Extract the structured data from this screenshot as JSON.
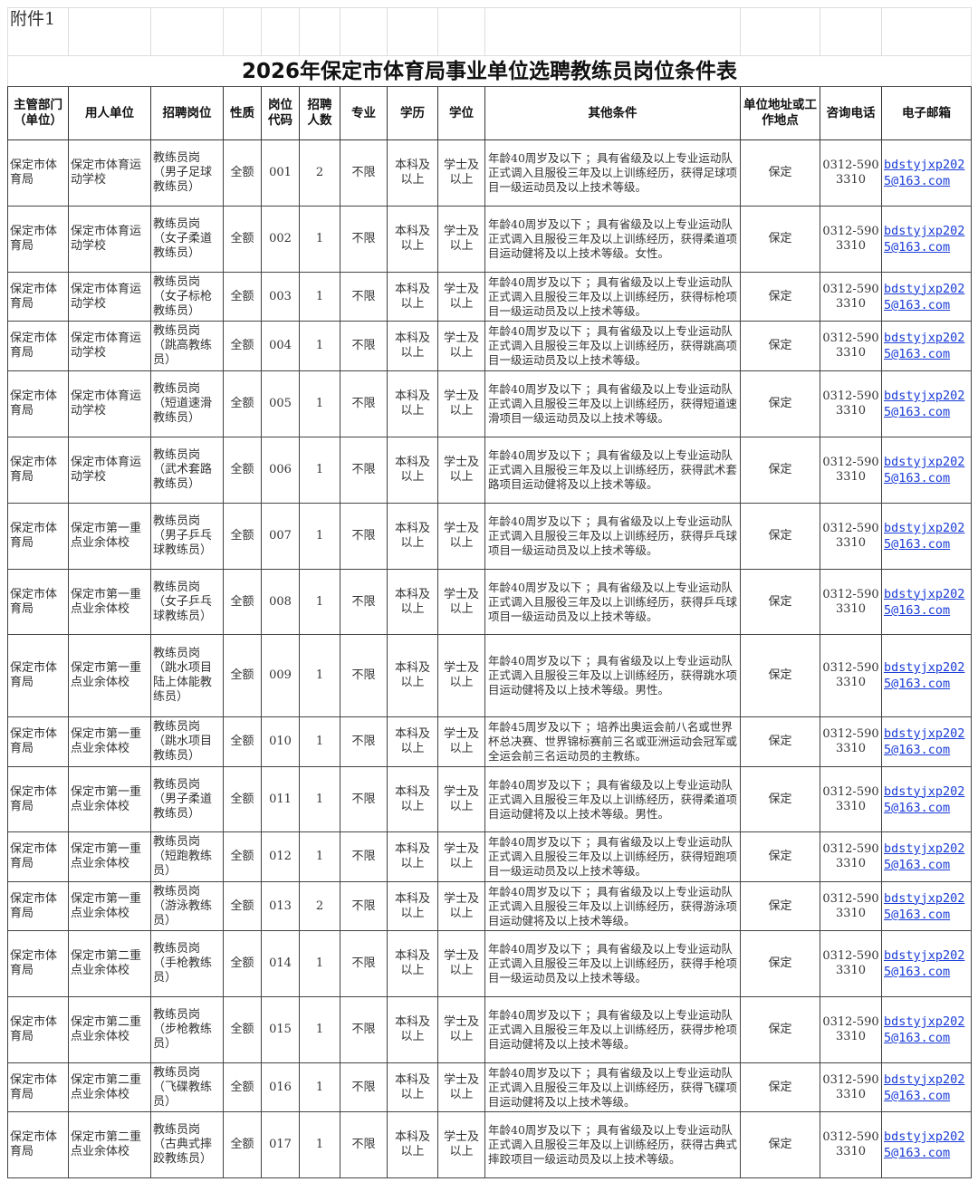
{
  "annex_label": "附件1",
  "title": "2026年保定市体育局事业单位选聘教练员岗位条件表",
  "headers": [
    "主管部门（单位）",
    "用人单位",
    "招聘岗位",
    "性质",
    "岗位代码",
    "招聘人数",
    "专业",
    "学历",
    "学位",
    "其他条件",
    "单位地址或工作地点",
    "咨询电话",
    "电子邮箱"
  ],
  "rows": [
    {
      "dept": "保定市体育局",
      "unit": "保定市体育运动学校",
      "post": "教练员岗（男子足球教练员）",
      "type": "全额",
      "code": "001",
      "count": "2",
      "major": "不限",
      "edu": "本科及以上",
      "degree": "学士及以上",
      "cond": "年龄40周岁及以下 ；具有省级及以上专业运动队正式调入且服役三年及以上训练经历，获得足球项目一级运动员及以上技术等级。",
      "place": "保定",
      "phone": "0312-5903310",
      "email": "bdstyjxp2025@163.com"
    },
    {
      "dept": "保定市体育局",
      "unit": "保定市体育运动学校",
      "post": "教练员岗（女子柔道教练员）",
      "type": "全额",
      "code": "002",
      "count": "1",
      "major": "不限",
      "edu": "本科及以上",
      "degree": "学士及以上",
      "cond": "年龄40周岁及以下 ；具有省级及以上专业运动队正式调入且服役三年及以上训练经历，获得柔道项目运动健将及以上技术等级。女性。",
      "place": "保定",
      "phone": "0312-5903310",
      "email": "bdstyjxp2025@163.com"
    },
    {
      "dept": "保定市体育局",
      "unit": "保定市体育运动学校",
      "post": "教练员岗（女子标枪教练员）",
      "type": "全额",
      "code": "003",
      "count": "1",
      "major": "不限",
      "edu": "本科及以上",
      "degree": "学士及以上",
      "cond": "年龄40周岁及以下 ；具有省级及以上专业运动队正式调入且服役三年及以上训练经历，获得标枪项目一级运动员及以上技术等级。",
      "place": "保定",
      "phone": "0312-5903310",
      "email": "bdstyjxp2025@163.com"
    },
    {
      "dept": "保定市体育局",
      "unit": "保定市体育运动学校",
      "post": "教练员岗（跳高教练员）",
      "type": "全额",
      "code": "004",
      "count": "1",
      "major": "不限",
      "edu": "本科及以上",
      "degree": "学士及以上",
      "cond": "年龄40周岁及以下 ；具有省级及以上专业运动队正式调入且服役三年及以上训练经历，获得跳高项目一级运动员及以上技术等级。",
      "place": "保定",
      "phone": "0312-5903310",
      "email": "bdstyjxp2025@163.com"
    },
    {
      "dept": "保定市体育局",
      "unit": "保定市体育运动学校",
      "post": "教练员岗（短道速滑教练员）",
      "type": "全额",
      "code": "005",
      "count": "1",
      "major": "不限",
      "edu": "本科及以上",
      "degree": "学士及以上",
      "cond": "年龄40周岁及以下 ；具有省级及以上专业运动队正式调入且服役三年及以上训练经历，获得短道速滑项目一级运动员及以上技术等级。",
      "place": "保定",
      "phone": "0312-5903310",
      "email": "bdstyjxp2025@163.com"
    },
    {
      "dept": "保定市体育局",
      "unit": "保定市体育运动学校",
      "post": "教练员岗（武术套路教练员）",
      "type": "全额",
      "code": "006",
      "count": "1",
      "major": "不限",
      "edu": "本科及以上",
      "degree": "学士及以上",
      "cond": "年龄40周岁及以下 ；具有省级及以上专业运动队正式调入且服役三年及以上训练经历，获得武术套路项目运动健将及以上技术等级。",
      "place": "保定",
      "phone": "0312-5903310",
      "email": "bdstyjxp2025@163.com"
    },
    {
      "dept": "保定市体育局",
      "unit": "保定市第一重点业余体校",
      "post": "教练员岗（男子乒乓球教练员）",
      "type": "全额",
      "code": "007",
      "count": "1",
      "major": "不限",
      "edu": "本科及以上",
      "degree": "学士及以上",
      "cond": "年龄40周岁及以下 ；具有省级及以上专业运动队正式调入且服役三年及以上训练经历，获得乒乓球项目一级运动员及以上技术等级。",
      "place": "保定",
      "phone": "0312-5903310",
      "email": "bdstyjxp2025@163.com"
    },
    {
      "dept": "保定市体育局",
      "unit": "保定市第一重点业余体校",
      "post": "教练员岗（女子乒乓球教练员）",
      "type": "全额",
      "code": "008",
      "count": "1",
      "major": "不限",
      "edu": "本科及以上",
      "degree": "学士及以上",
      "cond": "年龄40周岁及以下 ；具有省级及以上专业运动队正式调入且服役三年及以上训练经历，获得乒乓球项目一级运动员及以上技术等级。",
      "place": "保定",
      "phone": "0312-5903310",
      "email": "bdstyjxp2025@163.com"
    },
    {
      "dept": "保定市体育局",
      "unit": "保定市第一重点业余体校",
      "post": "教练员岗（跳水项目陆上体能教练员）",
      "type": "全额",
      "code": "009",
      "count": "1",
      "major": "不限",
      "edu": "本科及以上",
      "degree": "学士及以上",
      "cond": "年龄40周岁及以下 ；具有省级及以上专业运动队正式调入且服役三年及以上训练经历，获得跳水项目运动健将及以上技术等级。男性。",
      "place": "保定",
      "phone": "0312-5903310",
      "email": "bdstyjxp2025@163.com"
    },
    {
      "dept": "保定市体育局",
      "unit": "保定市第一重点业余体校",
      "post": "教练员岗（跳水项目教练员）",
      "type": "全额",
      "code": "010",
      "count": "1",
      "major": "不限",
      "edu": "本科及以上",
      "degree": "学士及以上",
      "cond": "年龄45周岁及以下 ；培养出奥运会前八名或世界杯总决赛、世界锦标赛前三名或亚洲运动会冠军或全运会前三名运动员的主教练。",
      "place": "保定",
      "phone": "0312-5903310",
      "email": "bdstyjxp2025@163.com"
    },
    {
      "dept": "保定市体育局",
      "unit": "保定市第一重点业余体校",
      "post": "教练员岗（男子柔道教练员）",
      "type": "全额",
      "code": "011",
      "count": "1",
      "major": "不限",
      "edu": "本科及以上",
      "degree": "学士及以上",
      "cond": "年龄40周岁及以下 ；具有省级及以上专业运动队正式调入且服役三年及以上训练经历，获得柔道项目运动健将及以上技术等级。男性。",
      "place": "保定",
      "phone": "0312-5903310",
      "email": "bdstyjxp2025@163.com"
    },
    {
      "dept": "保定市体育局",
      "unit": "保定市第一重点业余体校",
      "post": "教练员岗（短跑教练员）",
      "type": "全额",
      "code": "012",
      "count": "1",
      "major": "不限",
      "edu": "本科及以上",
      "degree": "学士及以上",
      "cond": "年龄40周岁及以下 ；具有省级及以上专业运动队正式调入且服役三年及以上训练经历，获得短跑项目一级运动员及以上技术等级。",
      "place": "保定",
      "phone": "0312-5903310",
      "email": "bdstyjxp2025@163.com"
    },
    {
      "dept": "保定市体育局",
      "unit": "保定市第一重点业余体校",
      "post": "教练员岗（游泳教练员）",
      "type": "全额",
      "code": "013",
      "count": "2",
      "major": "不限",
      "edu": "本科及以上",
      "degree": "学士及以上",
      "cond": "年龄40周岁及以下 ；具有省级及以上专业运动队正式调入且服役三年及以上训练经历，获得游泳项目运动健将及以上技术等级。",
      "place": "保定",
      "phone": "0312-5903310",
      "email": "bdstyjxp2025@163.com"
    },
    {
      "dept": "保定市体育局",
      "unit": "保定市第二重点业余体校",
      "post": "教练员岗（手枪教练员）",
      "type": "全额",
      "code": "014",
      "count": "1",
      "major": "不限",
      "edu": "本科及以上",
      "degree": "学士及以上",
      "cond": "年龄40周岁及以下 ；具有省级及以上专业运动队正式调入且服役三年及以上训练经历，获得手枪项目一级运动员及以上技术等级。",
      "place": "保定",
      "phone": "0312-5903310",
      "email": "bdstyjxp2025@163.com"
    },
    {
      "dept": "保定市体育局",
      "unit": "保定市第二重点业余体校",
      "post": "教练员岗（步枪教练员）",
      "type": "全额",
      "code": "015",
      "count": "1",
      "major": "不限",
      "edu": "本科及以上",
      "degree": "学士及以上",
      "cond": "年龄40周岁及以下 ；具有省级及以上专业运动队正式调入且服役三年及以上训练经历，获得步枪项目运动健将及以上技术等级。",
      "place": "保定",
      "phone": "0312-5903310",
      "email": "bdstyjxp2025@163.com"
    },
    {
      "dept": "保定市体育局",
      "unit": "保定市第二重点业余体校",
      "post": "教练员岗（飞碟教练员）",
      "type": "全额",
      "code": "016",
      "count": "1",
      "major": "不限",
      "edu": "本科及以上",
      "degree": "学士及以上",
      "cond": "年龄40周岁及以下 ；具有省级及以上专业运动队正式调入且服役三年及以上训练经历，获得飞碟项目运动健将及以上技术等级。",
      "place": "保定",
      "phone": "0312-5903310",
      "email": "bdstyjxp2025@163.com"
    },
    {
      "dept": "保定市体育局",
      "unit": "保定市第二重点业余体校",
      "post": "教练员岗（古典式摔跤教练员）",
      "type": "全额",
      "code": "017",
      "count": "1",
      "major": "不限",
      "edu": "本科及以上",
      "degree": "学士及以上",
      "cond": "年龄40周岁及以下 ；具有省级及以上专业运动队正式调入且服役三年及以上训练经历，获得古典式摔跤项目一级运动员及以上技术等级。",
      "place": "保定",
      "phone": "0312-5903310",
      "email": "bdstyjxp2025@163.com"
    }
  ],
  "colors": {
    "email_link": "#1a3cd8",
    "border": "#444444"
  }
}
